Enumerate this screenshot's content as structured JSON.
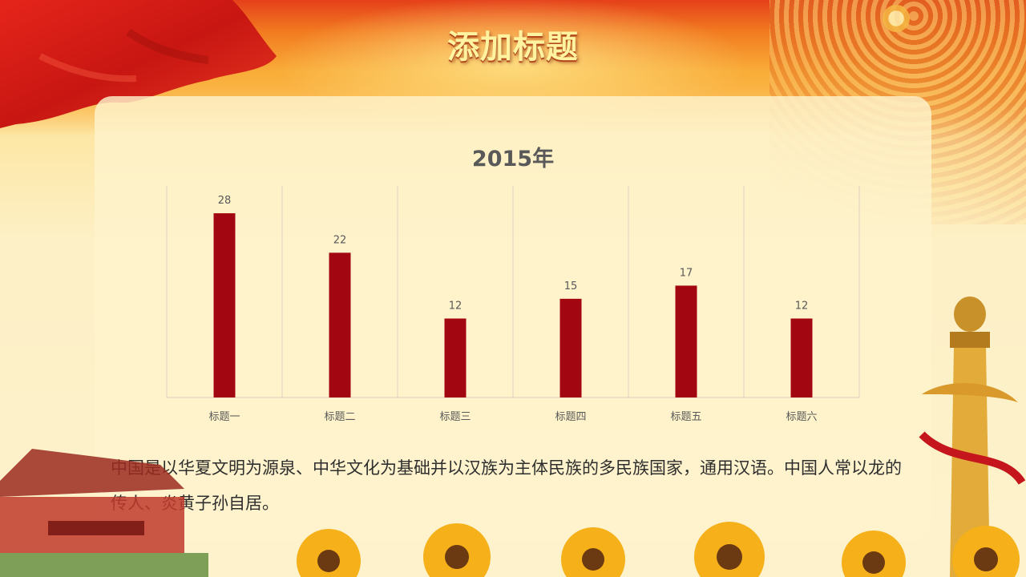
{
  "slide": {
    "title": "添加标题",
    "description": "中国是以华夏文明为源泉、中华文化为基础并以汉族为主体民族的多民族国家，通用汉语。中国人常以龙的传人、炎黄子孙自居。"
  },
  "colors": {
    "bar": "#a20711",
    "grid": "#d9d2bd",
    "label": "#595959",
    "title": "#fff3a0"
  },
  "chart_data": {
    "type": "bar",
    "title": "2015年",
    "categories": [
      "标题一",
      "标题二",
      "标题三",
      "标题四",
      "标题五",
      "标题六"
    ],
    "series": [
      {
        "values": [
          28,
          22,
          12,
          15,
          17,
          12
        ]
      }
    ],
    "xlabel": "",
    "ylabel": "",
    "ylim": [
      0,
      30
    ],
    "grid": "vertical",
    "legend": "none",
    "data_labels": true
  }
}
